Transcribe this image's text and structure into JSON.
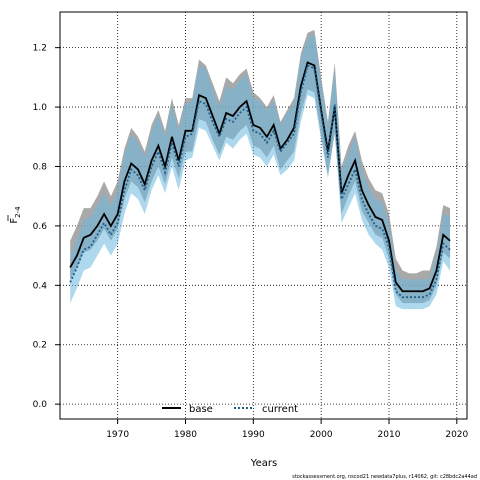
{
  "chart_data": {
    "type": "line",
    "xlabel": "Years",
    "ylabel": "F",
    "ylabel_sub": "2-4",
    "xlim": [
      1961.5,
      2021.5
    ],
    "ylim": [
      -0.05,
      1.32
    ],
    "xticks": [
      1970,
      1980,
      1990,
      2000,
      2010,
      2020
    ],
    "yticks": [
      "0.0",
      "0.2",
      "0.4",
      "0.6",
      "0.8",
      "1.0",
      "1.2"
    ],
    "grid": true,
    "legend_position": "bottom-center",
    "x": [
      1963,
      1964,
      1965,
      1966,
      1967,
      1968,
      1969,
      1970,
      1971,
      1972,
      1973,
      1974,
      1975,
      1976,
      1977,
      1978,
      1979,
      1980,
      1981,
      1982,
      1983,
      1984,
      1985,
      1986,
      1987,
      1988,
      1989,
      1990,
      1991,
      1992,
      1993,
      1994,
      1995,
      1996,
      1997,
      1998,
      1999,
      2000,
      2001,
      2002,
      2003,
      2004,
      2005,
      2006,
      2007,
      2008,
      2009,
      2010,
      2011,
      2012,
      2013,
      2014,
      2015,
      2016,
      2017,
      2018,
      2019
    ],
    "series": [
      {
        "name": "base",
        "color": "#000000",
        "band_color": "#8c8c8c",
        "dash": "solid",
        "values": [
          0.46,
          0.5,
          0.56,
          0.57,
          0.6,
          0.64,
          0.6,
          0.64,
          0.75,
          0.81,
          0.79,
          0.74,
          0.82,
          0.87,
          0.8,
          0.9,
          0.82,
          0.92,
          0.92,
          1.04,
          1.03,
          0.97,
          0.91,
          0.98,
          0.97,
          1.0,
          1.02,
          0.94,
          0.93,
          0.9,
          0.94,
          0.86,
          0.89,
          0.93,
          1.07,
          1.15,
          1.14,
          0.99,
          0.85,
          1.0,
          0.71,
          0.77,
          0.82,
          0.72,
          0.67,
          0.63,
          0.62,
          0.55,
          0.41,
          0.38,
          0.38,
          0.38,
          0.38,
          0.39,
          0.45,
          0.57,
          0.55
        ],
        "lower": [
          0.42,
          0.46,
          0.51,
          0.52,
          0.55,
          0.59,
          0.55,
          0.59,
          0.69,
          0.75,
          0.73,
          0.68,
          0.75,
          0.8,
          0.74,
          0.83,
          0.76,
          0.85,
          0.85,
          0.96,
          0.95,
          0.89,
          0.84,
          0.9,
          0.89,
          0.92,
          0.94,
          0.87,
          0.86,
          0.83,
          0.87,
          0.79,
          0.82,
          0.85,
          0.98,
          1.06,
          1.05,
          0.9,
          0.77,
          0.91,
          0.64,
          0.7,
          0.75,
          0.65,
          0.61,
          0.57,
          0.56,
          0.49,
          0.37,
          0.34,
          0.34,
          0.34,
          0.34,
          0.35,
          0.4,
          0.51,
          0.49
        ],
        "upper": [
          0.55,
          0.6,
          0.66,
          0.66,
          0.7,
          0.75,
          0.7,
          0.75,
          0.86,
          0.93,
          0.9,
          0.85,
          0.94,
          0.99,
          0.92,
          1.03,
          0.94,
          1.03,
          1.03,
          1.16,
          1.14,
          1.08,
          1.02,
          1.1,
          1.08,
          1.11,
          1.13,
          1.05,
          1.03,
          1.0,
          1.04,
          0.95,
          0.99,
          1.03,
          1.18,
          1.25,
          1.26,
          1.1,
          0.95,
          1.15,
          0.8,
          0.87,
          0.92,
          0.82,
          0.76,
          0.72,
          0.71,
          0.64,
          0.49,
          0.45,
          0.44,
          0.44,
          0.45,
          0.45,
          0.53,
          0.67,
          0.66
        ]
      },
      {
        "name": "current",
        "color": "#1f5f8b",
        "band_color": "#6ab8de",
        "dash": "dotted",
        "values": [
          0.41,
          0.46,
          0.52,
          0.53,
          0.57,
          0.61,
          0.57,
          0.61,
          0.72,
          0.79,
          0.77,
          0.72,
          0.8,
          0.85,
          0.78,
          0.88,
          0.8,
          0.9,
          0.91,
          1.02,
          1.01,
          0.95,
          0.9,
          0.96,
          0.95,
          0.98,
          1.0,
          0.92,
          0.91,
          0.88,
          0.92,
          0.85,
          0.88,
          0.91,
          1.05,
          1.14,
          1.13,
          0.98,
          0.83,
          1.01,
          0.69,
          0.74,
          0.79,
          0.69,
          0.64,
          0.6,
          0.59,
          0.53,
          0.38,
          0.36,
          0.36,
          0.36,
          0.36,
          0.37,
          0.42,
          0.54,
          0.52
        ],
        "lower": [
          0.34,
          0.39,
          0.45,
          0.46,
          0.5,
          0.54,
          0.5,
          0.54,
          0.64,
          0.71,
          0.69,
          0.64,
          0.72,
          0.77,
          0.71,
          0.8,
          0.72,
          0.82,
          0.83,
          0.93,
          0.92,
          0.87,
          0.82,
          0.88,
          0.86,
          0.89,
          0.91,
          0.84,
          0.83,
          0.8,
          0.84,
          0.77,
          0.79,
          0.82,
          0.95,
          1.04,
          1.03,
          0.89,
          0.76,
          0.92,
          0.61,
          0.66,
          0.71,
          0.62,
          0.57,
          0.54,
          0.52,
          0.46,
          0.33,
          0.32,
          0.32,
          0.32,
          0.32,
          0.33,
          0.37,
          0.48,
          0.45
        ],
        "upper": [
          0.5,
          0.55,
          0.62,
          0.63,
          0.67,
          0.71,
          0.67,
          0.72,
          0.84,
          0.91,
          0.88,
          0.83,
          0.92,
          0.97,
          0.9,
          1.01,
          0.92,
          1.01,
          1.02,
          1.14,
          1.13,
          1.06,
          1.0,
          1.07,
          1.06,
          1.09,
          1.11,
          1.03,
          1.02,
          0.99,
          1.02,
          0.94,
          0.98,
          1.01,
          1.16,
          1.23,
          1.25,
          1.08,
          0.93,
          1.13,
          0.78,
          0.84,
          0.9,
          0.79,
          0.73,
          0.69,
          0.68,
          0.61,
          0.45,
          0.42,
          0.42,
          0.42,
          0.42,
          0.42,
          0.5,
          0.64,
          0.63
        ]
      }
    ]
  },
  "credit": "stockassessment.org, nscod21 newdata7plus, r14062, git: c28bdc2a44ad"
}
